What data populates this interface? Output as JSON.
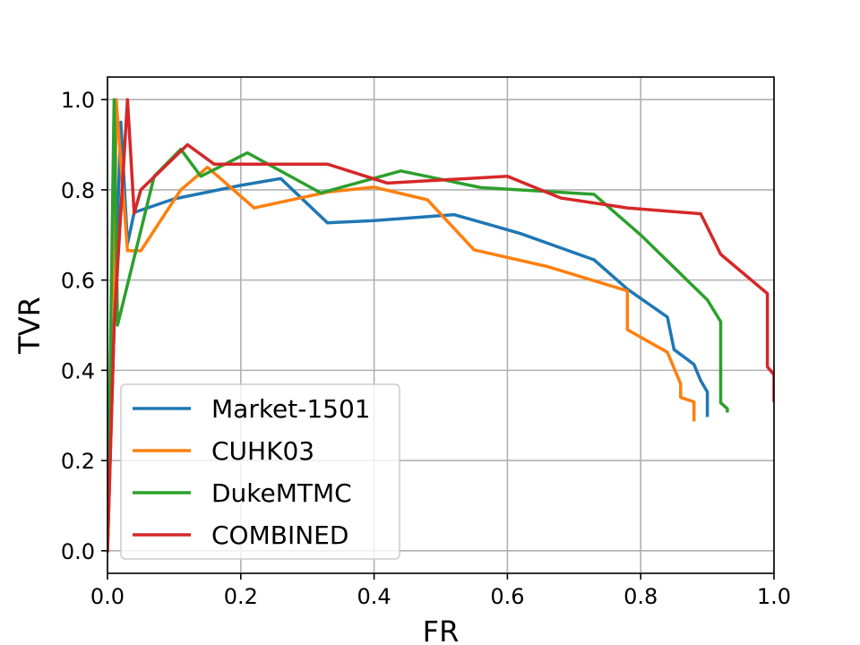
{
  "chart_data": {
    "type": "line",
    "xlabel": "FR",
    "ylabel": "TVR",
    "xlim": [
      0,
      1
    ],
    "ylim": [
      -0.05,
      1.05
    ],
    "xticks": [
      "0.0",
      "0.2",
      "0.4",
      "0.6",
      "0.8",
      "1.0"
    ],
    "yticks": [
      "0.0",
      "0.2",
      "0.4",
      "0.6",
      "0.8",
      "1.0"
    ],
    "grid": true,
    "legend_position": "bottom-left",
    "series": [
      {
        "name": "Market-1501",
        "color": "#1f77b4",
        "points": [
          [
            0,
            0
          ],
          [
            0.01,
            0.5
          ],
          [
            0.02,
            0.95
          ],
          [
            0.03,
            0.68
          ],
          [
            0.04,
            0.75
          ],
          [
            0.1,
            0.78
          ],
          [
            0.2,
            0.81
          ],
          [
            0.26,
            0.825
          ],
          [
            0.33,
            0.727
          ],
          [
            0.4,
            0.732
          ],
          [
            0.52,
            0.745
          ],
          [
            0.58,
            0.72
          ],
          [
            0.62,
            0.703
          ],
          [
            0.73,
            0.645
          ],
          [
            0.78,
            0.58
          ],
          [
            0.84,
            0.518
          ],
          [
            0.85,
            0.446
          ],
          [
            0.88,
            0.413
          ],
          [
            0.89,
            0.377
          ],
          [
            0.9,
            0.352
          ],
          [
            0.9,
            0.3
          ]
        ]
      },
      {
        "name": "CUHK03",
        "color": "#ff7f0e",
        "points": [
          [
            0,
            0
          ],
          [
            0.01,
            0.5
          ],
          [
            0.013,
            1.0
          ],
          [
            0.03,
            0.665
          ],
          [
            0.05,
            0.665
          ],
          [
            0.11,
            0.8
          ],
          [
            0.15,
            0.85
          ],
          [
            0.22,
            0.76
          ],
          [
            0.33,
            0.795
          ],
          [
            0.4,
            0.806
          ],
          [
            0.48,
            0.778
          ],
          [
            0.55,
            0.667
          ],
          [
            0.66,
            0.63
          ],
          [
            0.78,
            0.576
          ],
          [
            0.78,
            0.49
          ],
          [
            0.84,
            0.44
          ],
          [
            0.86,
            0.37
          ],
          [
            0.86,
            0.34
          ],
          [
            0.88,
            0.33
          ],
          [
            0.88,
            0.29
          ]
        ]
      },
      {
        "name": "DukeMTMC",
        "color": "#2ca02c",
        "points": [
          [
            0,
            0
          ],
          [
            0.005,
            0.5
          ],
          [
            0.01,
            1.0
          ],
          [
            0.015,
            0.5
          ],
          [
            0.07,
            0.83
          ],
          [
            0.11,
            0.89
          ],
          [
            0.14,
            0.83
          ],
          [
            0.21,
            0.882
          ],
          [
            0.32,
            0.793
          ],
          [
            0.44,
            0.842
          ],
          [
            0.56,
            0.805
          ],
          [
            0.73,
            0.79
          ],
          [
            0.8,
            0.7
          ],
          [
            0.9,
            0.556
          ],
          [
            0.92,
            0.508
          ],
          [
            0.92,
            0.328
          ],
          [
            0.93,
            0.315
          ],
          [
            0.93,
            0.31
          ]
        ]
      },
      {
        "name": "COMBINED",
        "color": "#d62728",
        "points": [
          [
            0,
            0
          ],
          [
            0.01,
            0.5
          ],
          [
            0.03,
            1.0
          ],
          [
            0.04,
            0.748
          ],
          [
            0.05,
            0.8
          ],
          [
            0.12,
            0.9
          ],
          [
            0.16,
            0.857
          ],
          [
            0.33,
            0.857
          ],
          [
            0.42,
            0.815
          ],
          [
            0.6,
            0.83
          ],
          [
            0.68,
            0.782
          ],
          [
            0.78,
            0.76
          ],
          [
            0.89,
            0.747
          ],
          [
            0.92,
            0.657
          ],
          [
            0.99,
            0.57
          ],
          [
            0.99,
            0.408
          ],
          [
            1.0,
            0.39
          ],
          [
            1.0,
            0.333
          ]
        ]
      }
    ]
  }
}
